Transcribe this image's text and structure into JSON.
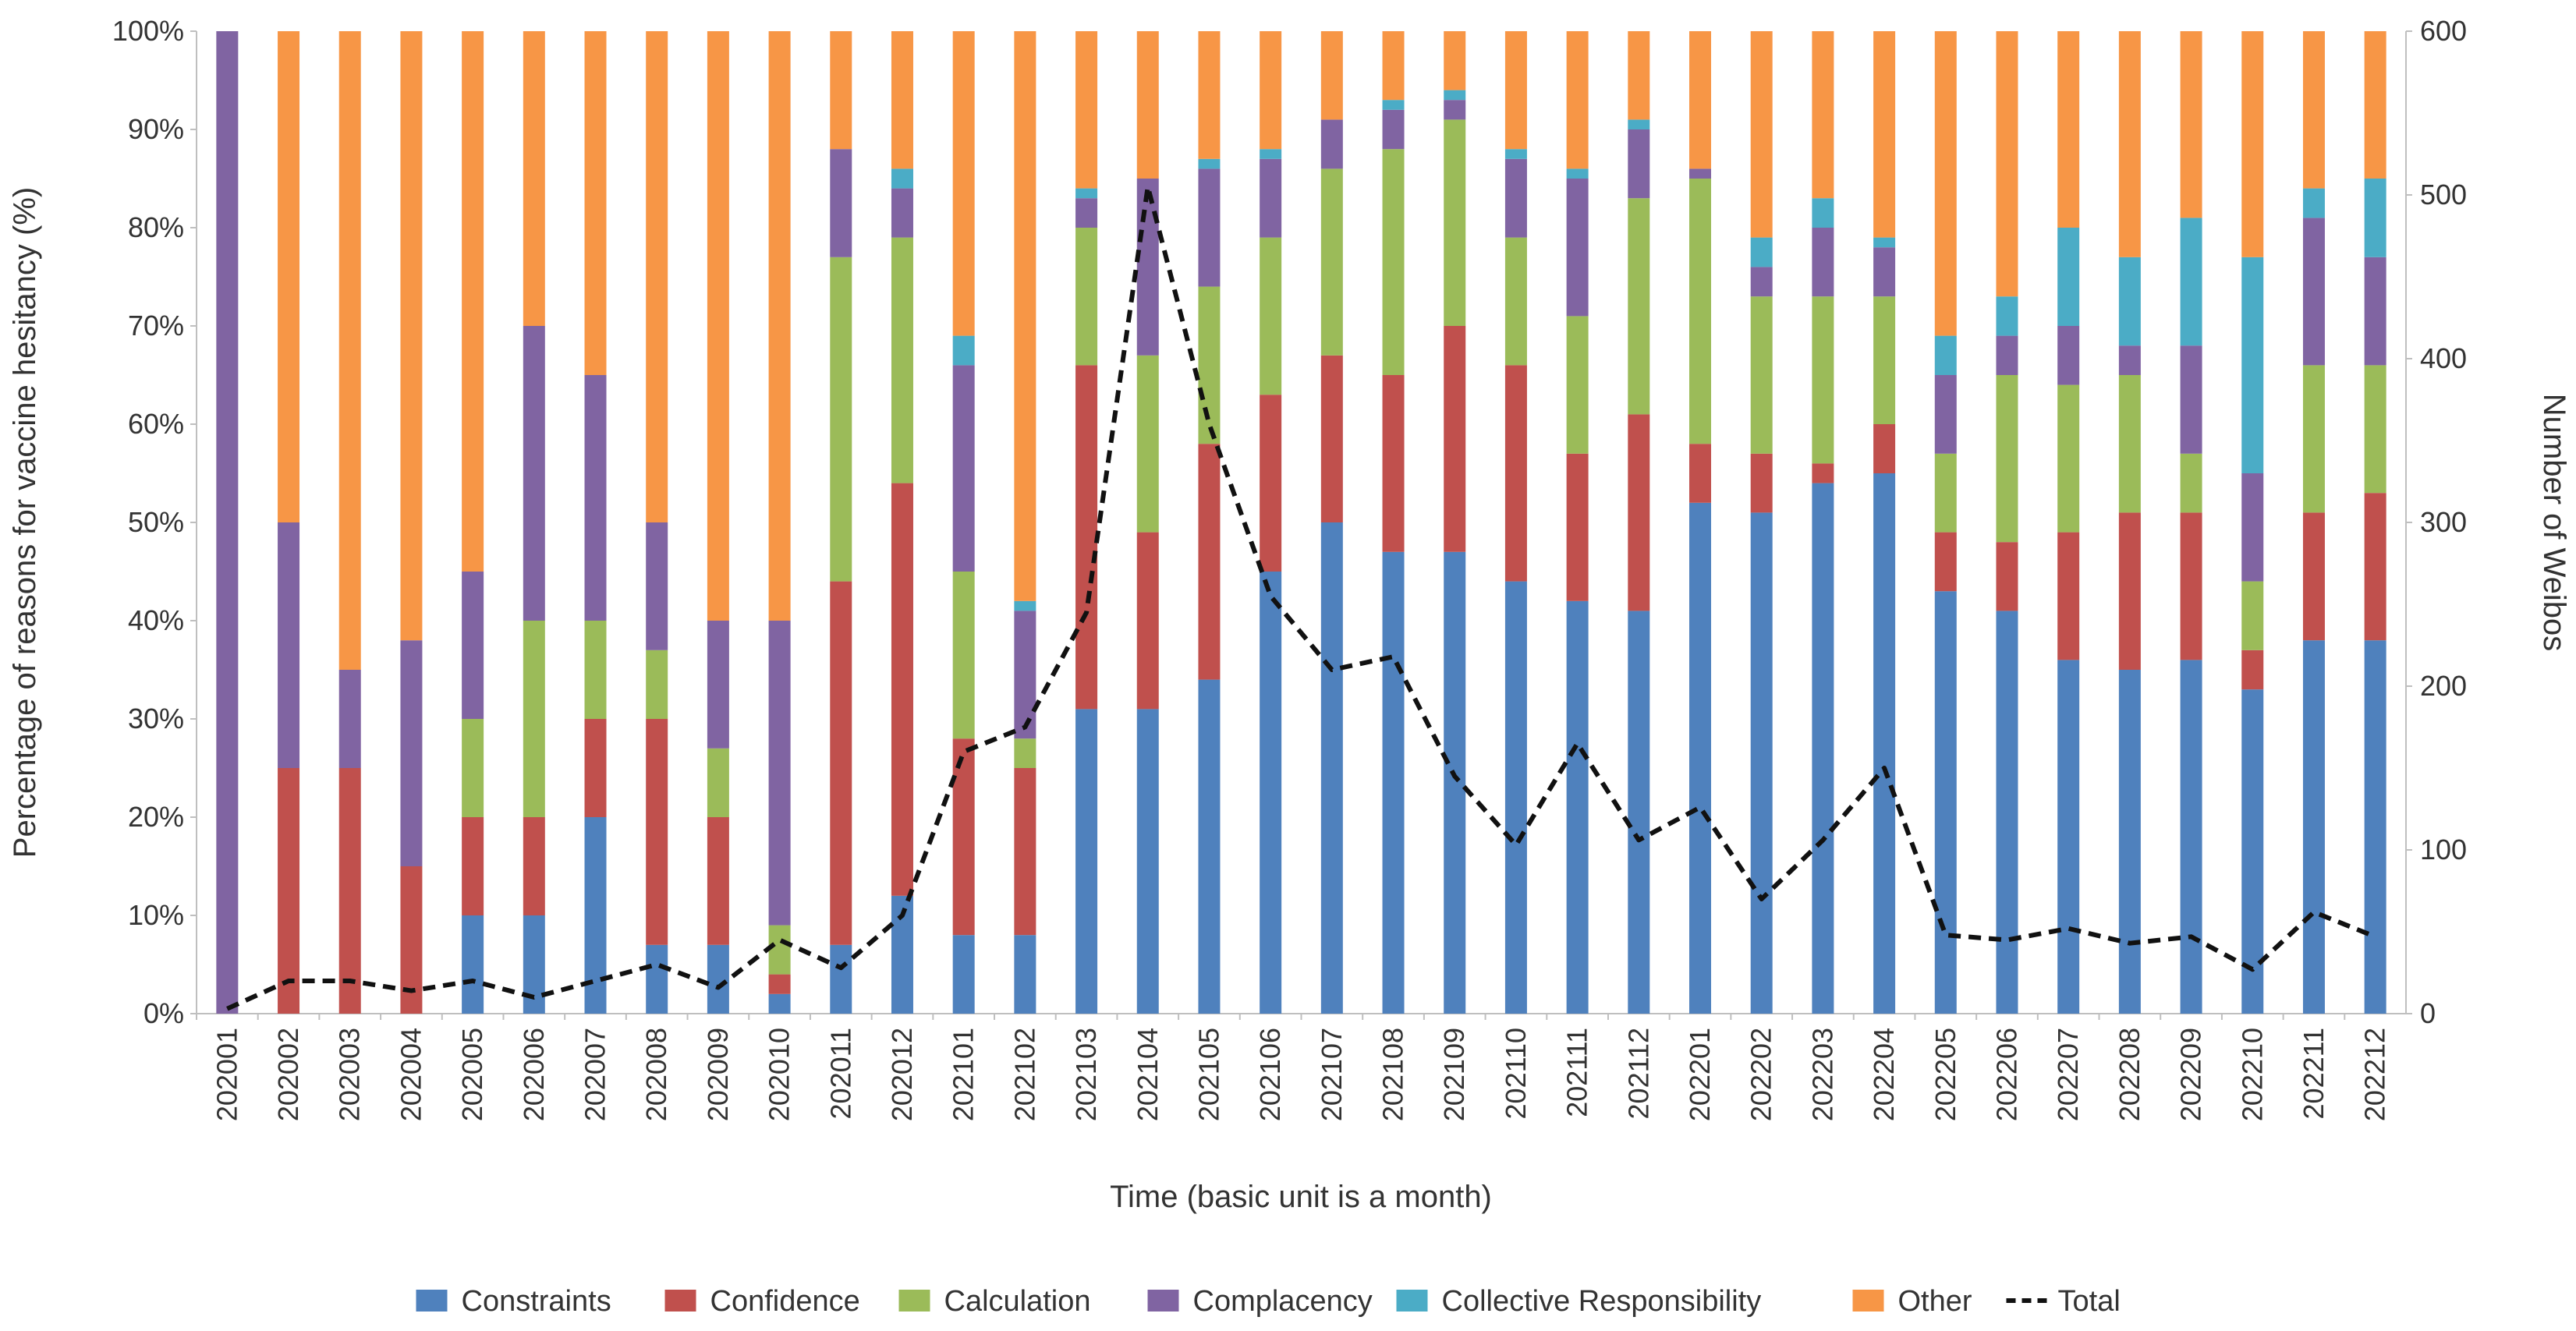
{
  "chart_data": {
    "type": "bar",
    "stacked": true,
    "percent_stacked": true,
    "title": "",
    "xlabel": "Time (basic unit is a month)",
    "ylabel": "Percentage of reasons for vaccine hesitancy (%)",
    "y2label": "Number of Weibos",
    "ylim": [
      0,
      100
    ],
    "y2lim": [
      0,
      600
    ],
    "yticks": [
      "0%",
      "10%",
      "20%",
      "30%",
      "40%",
      "50%",
      "60%",
      "70%",
      "80%",
      "90%",
      "100%"
    ],
    "y2ticks": [
      "0",
      "100",
      "200",
      "300",
      "400",
      "500",
      "600"
    ],
    "grid": false,
    "legend_position": "bottom",
    "categories": [
      "202001",
      "202002",
      "202003",
      "202004",
      "202005",
      "202006",
      "202007",
      "202008",
      "202009",
      "202010",
      "202011",
      "202012",
      "202101",
      "202102",
      "202103",
      "202104",
      "202105",
      "202106",
      "202107",
      "202108",
      "202109",
      "202110",
      "202111",
      "202112",
      "202201",
      "202202",
      "202203",
      "202204",
      "202205",
      "202206",
      "202207",
      "202208",
      "202209",
      "202210",
      "202211",
      "202212"
    ],
    "series": [
      {
        "name": "Constraints",
        "color": "#4f81bd",
        "values": [
          0,
          0,
          0,
          0,
          10,
          10,
          20,
          7,
          7,
          2,
          7,
          12,
          8,
          8,
          31,
          31,
          34,
          45,
          50,
          47,
          47,
          44,
          42,
          41,
          52,
          51,
          54,
          55,
          43,
          41,
          36,
          35,
          36,
          33,
          38,
          38
        ]
      },
      {
        "name": "Confidence",
        "color": "#c0504d",
        "values": [
          0,
          25,
          25,
          15,
          10,
          10,
          10,
          23,
          13,
          2,
          37,
          42,
          20,
          17,
          35,
          18,
          24,
          18,
          17,
          18,
          23,
          22,
          15,
          20,
          6,
          6,
          2,
          5,
          6,
          7,
          13,
          16,
          15,
          4,
          13,
          15
        ]
      },
      {
        "name": "Calculation",
        "color": "#9bbb59",
        "values": [
          0,
          0,
          0,
          0,
          10,
          20,
          10,
          7,
          7,
          5,
          33,
          25,
          17,
          3,
          14,
          18,
          16,
          16,
          19,
          23,
          21,
          13,
          14,
          22,
          27,
          16,
          17,
          13,
          8,
          17,
          15,
          14,
          6,
          7,
          15,
          13
        ]
      },
      {
        "name": "Complacency",
        "color": "#8064a2",
        "values": [
          100,
          25,
          10,
          23,
          15,
          30,
          25,
          13,
          13,
          31,
          11,
          5,
          21,
          13,
          3,
          18,
          12,
          8,
          5,
          4,
          2,
          8,
          14,
          7,
          1,
          3,
          7,
          5,
          8,
          4,
          6,
          3,
          11,
          11,
          15,
          11
        ]
      },
      {
        "name": "Collective Responsibility",
        "color": "#4bacc6",
        "values": [
          0,
          0,
          0,
          0,
          0,
          0,
          0,
          0,
          0,
          0,
          0,
          2,
          3,
          1,
          1,
          0,
          1,
          1,
          0,
          1,
          1,
          1,
          1,
          1,
          0,
          3,
          3,
          1,
          4,
          4,
          10,
          9,
          13,
          22,
          3,
          8
        ]
      },
      {
        "name": "Other",
        "color": "#f79646",
        "values": [
          0,
          50,
          65,
          62,
          55,
          30,
          35,
          50,
          60,
          60,
          12,
          14,
          31,
          58,
          16,
          15,
          13,
          12,
          9,
          7,
          6,
          12,
          14,
          9,
          14,
          21,
          17,
          21,
          31,
          27,
          20,
          23,
          19,
          23,
          16,
          15
        ]
      }
    ],
    "line_series": {
      "name": "Total",
      "color": "#111111",
      "axis": "secondary",
      "dashed": true,
      "values": [
        3,
        20,
        20,
        14,
        20,
        10,
        20,
        30,
        16,
        45,
        28,
        60,
        160,
        175,
        245,
        505,
        360,
        255,
        210,
        218,
        145,
        103,
        165,
        106,
        126,
        70,
        106,
        150,
        48,
        45,
        52,
        43,
        47,
        27,
        62,
        47
      ]
    }
  }
}
